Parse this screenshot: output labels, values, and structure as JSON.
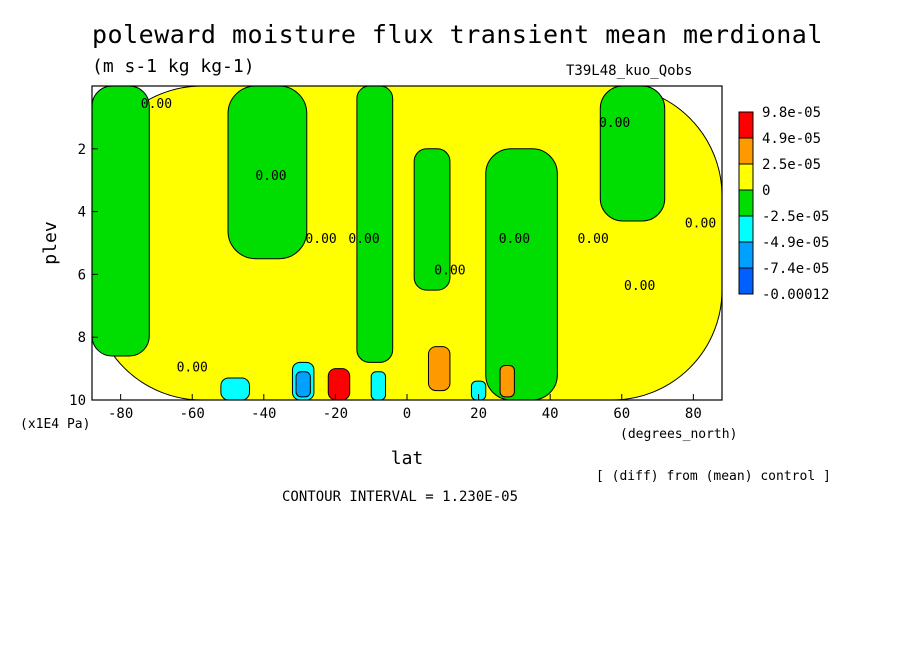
{
  "chart_data": {
    "type": "heatmap",
    "title": "poleward moisture flux transient mean merdional",
    "subtitle": "(m s-1 kg kg-1)",
    "run_label": "T39L48_kuo_Qobs",
    "xlabel": "lat",
    "x_unit": "(degrees_north)",
    "ylabel": "plev",
    "y_unit": "(x1E4 Pa)",
    "xlim": [
      -88,
      88
    ],
    "ylim": [
      10,
      0
    ],
    "x_ticks": [
      "-80",
      "-60",
      "-40",
      "-20",
      "0",
      "20",
      "40",
      "60",
      "80"
    ],
    "y_ticks": [
      "2",
      "4",
      "6",
      "8",
      "10"
    ],
    "legend": {
      "position": "right",
      "levels": [
        "9.8e-05",
        "4.9e-05",
        "2.5e-05",
        "0",
        "-2.5e-05",
        "-4.9e-05",
        "-7.4e-05",
        "-0.00012"
      ],
      "colors": [
        "#ff0000",
        "#ff9900",
        "#ffff00",
        "#00dd00",
        "#00ffff",
        "#00a0ff",
        "#0060ff"
      ]
    },
    "contour_labels": [
      "0.00",
      "0.00",
      "0.00",
      "0.00",
      "0.00",
      "0.00",
      "0.00",
      "0.00",
      "0.00",
      "0.00",
      "0.00"
    ],
    "regions": [
      {
        "fill": "#ffff00",
        "lat": [
          -88,
          88
        ],
        "plev": [
          0,
          10
        ]
      },
      {
        "fill": "#00dd00",
        "lat": [
          -88,
          -72
        ],
        "plev": [
          0,
          8.6
        ]
      },
      {
        "fill": "#00dd00",
        "lat": [
          -50,
          -28
        ],
        "plev": [
          0,
          5.5
        ]
      },
      {
        "fill": "#00dd00",
        "lat": [
          -14,
          -4
        ],
        "plev": [
          0,
          8.8
        ]
      },
      {
        "fill": "#00dd00",
        "lat": [
          2,
          12
        ],
        "plev": [
          2,
          6.5
        ]
      },
      {
        "fill": "#00dd00",
        "lat": [
          22,
          42
        ],
        "plev": [
          2,
          10
        ]
      },
      {
        "fill": "#00dd00",
        "lat": [
          54,
          72
        ],
        "plev": [
          0,
          4.3
        ]
      },
      {
        "fill": "#00ffff",
        "lat": [
          -52,
          -44
        ],
        "plev": [
          9.3,
          10
        ]
      },
      {
        "fill": "#00ffff",
        "lat": [
          -32,
          -26
        ],
        "plev": [
          8.8,
          10
        ]
      },
      {
        "fill": "#00a0ff",
        "lat": [
          -31,
          -27
        ],
        "plev": [
          9.1,
          9.9
        ]
      },
      {
        "fill": "#ff0000",
        "lat": [
          -22,
          -16
        ],
        "plev": [
          9.0,
          10
        ]
      },
      {
        "fill": "#00ffff",
        "lat": [
          -10,
          -6
        ],
        "plev": [
          9.1,
          10
        ]
      },
      {
        "fill": "#ff9900",
        "lat": [
          6,
          12
        ],
        "plev": [
          8.3,
          9.7
        ]
      },
      {
        "fill": "#00ffff",
        "lat": [
          18,
          22
        ],
        "plev": [
          9.4,
          10
        ]
      },
      {
        "fill": "#ff9900",
        "lat": [
          26,
          30
        ],
        "plev": [
          8.9,
          9.9
        ]
      }
    ]
  },
  "footer": {
    "note": "[ (diff) from (mean) control ]",
    "contour_interval": "CONTOUR INTERVAL = 1.230E-05"
  }
}
